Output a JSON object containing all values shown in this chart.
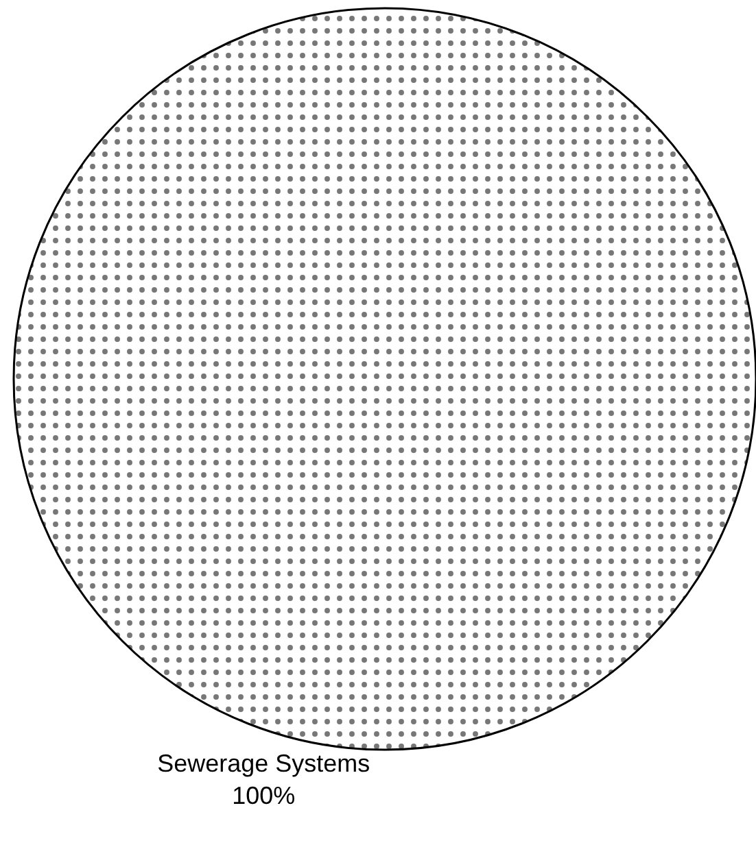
{
  "chart_data": {
    "type": "pie",
    "categories": [
      "Sewerage Systems"
    ],
    "values": [
      100
    ],
    "colors": [
      "#ffffff"
    ],
    "value_labels": [
      "100%"
    ],
    "legend": false
  }
}
